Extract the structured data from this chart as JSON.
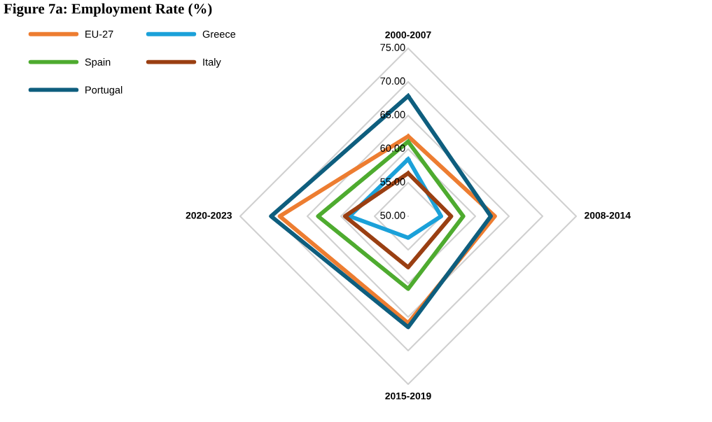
{
  "chart_data": {
    "type": "radar",
    "title": "Figure 7a: Employment Rate (%)",
    "categories": [
      "2000-2007",
      "2008-2014",
      "2015-2019",
      "2020-2023"
    ],
    "series": [
      {
        "name": "EU-27",
        "color": "#ed7d31",
        "values": [
          61.9,
          62.9,
          65.9,
          69.1
        ]
      },
      {
        "name": "Greece",
        "color": "#1ba1d9",
        "values": [
          58.5,
          54.9,
          53.2,
          58.7
        ]
      },
      {
        "name": "Spain",
        "color": "#4eab2f",
        "values": [
          61.1,
          58.2,
          60.8,
          63.4
        ]
      },
      {
        "name": "Italy",
        "color": "#9a3f12",
        "values": [
          56.4,
          56.4,
          57.6,
          59.4
        ]
      },
      {
        "name": "Portugal",
        "color": "#0e5e7e",
        "values": [
          67.9,
          62.3,
          66.5,
          70.4
        ]
      }
    ],
    "ylim": [
      50,
      75
    ],
    "yticks": [
      {
        "value": 50,
        "label": "50.00"
      },
      {
        "value": 55,
        "label": "55.00"
      },
      {
        "value": 60,
        "label": "60.00"
      },
      {
        "value": 65,
        "label": "65.00"
      },
      {
        "value": 70,
        "label": "70.00"
      },
      {
        "value": 75,
        "label": "75.00"
      }
    ],
    "grid": true,
    "legend": "top left",
    "marker": "none",
    "line_style": "solid"
  }
}
